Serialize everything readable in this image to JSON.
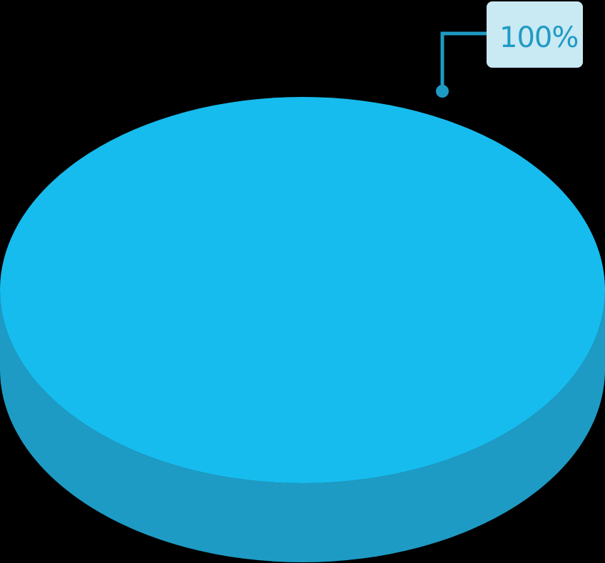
{
  "chart_data": {
    "type": "pie",
    "style": "3d",
    "slices": [
      {
        "value": 100,
        "label": "100%",
        "color": "#17BCEE",
        "side_color": "#1E9BC4"
      }
    ],
    "title": "",
    "legend": "none"
  },
  "colors": {
    "background": "#000000",
    "callout_line": "#1E9BC4",
    "label_box": "#C9E9F3",
    "label_text": "#1E9BC4"
  }
}
